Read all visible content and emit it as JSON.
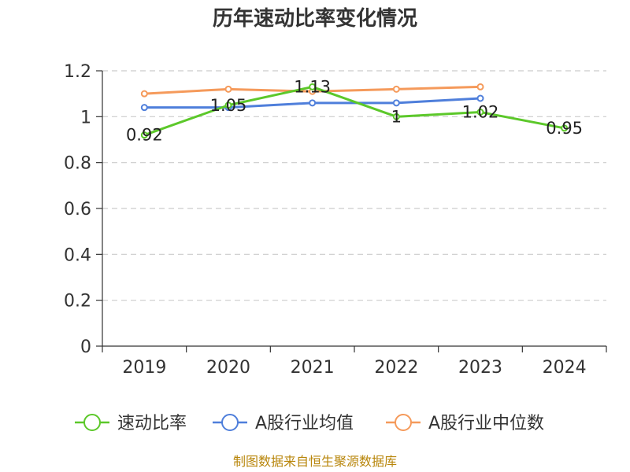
{
  "chart_data": {
    "type": "line",
    "title": "历年速动比率变化情况",
    "categories": [
      "2019",
      "2020",
      "2021",
      "2022",
      "2023",
      "2024"
    ],
    "ylim": [
      0,
      1.2
    ],
    "yticks": [
      "0",
      "0.2",
      "0.4",
      "0.6",
      "0.8",
      "1",
      "1.2"
    ],
    "grid": true,
    "legend_position": "bottom",
    "series": [
      {
        "name": "速动比率",
        "color": "#5cc82a",
        "values": [
          0.92,
          1.05,
          1.13,
          1.0,
          1.02,
          0.95
        ],
        "labels": [
          "0.92",
          "1.05",
          "1.13",
          "1",
          "1.02",
          "0.95"
        ]
      },
      {
        "name": "A股行业均值",
        "color": "#4f7fdb",
        "values": [
          1.04,
          1.04,
          1.06,
          1.06,
          1.08,
          null
        ]
      },
      {
        "name": "A股行业中位数",
        "color": "#f59a5b",
        "values": [
          1.1,
          1.12,
          1.11,
          1.12,
          1.13,
          null
        ]
      }
    ],
    "source": "制图数据来自恒生聚源数据库"
  }
}
